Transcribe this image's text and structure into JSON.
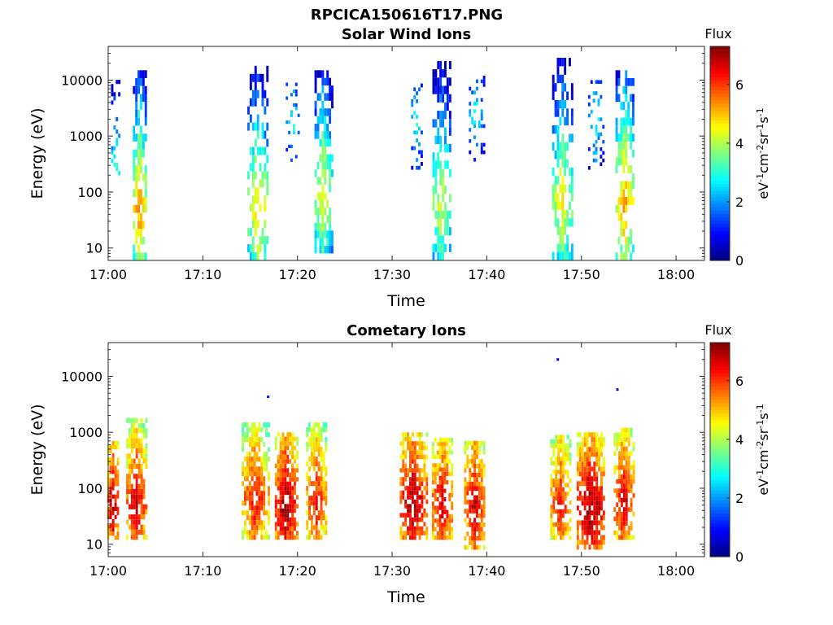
{
  "figure": {
    "title": "RPCICA150616T17.PNG",
    "flux_label": "Flux",
    "unit_base": "eV",
    "unit_exp1": "-1",
    "unit_mid1": "cm",
    "unit_exp2": "-2",
    "unit_mid2": "sr",
    "unit_exp3": "-1",
    "unit_mid3": "s",
    "unit_exp4": "-1"
  },
  "chart_data": [
    {
      "type": "heatmap",
      "title": "Solar Wind Ions",
      "xlabel": "Time",
      "ylabel": "Energy (eV)",
      "x_ticks": [
        "17:00",
        "17:10",
        "17:20",
        "17:30",
        "17:40",
        "17:50",
        "18:00"
      ],
      "x_tick_minutes": [
        0,
        10,
        20,
        30,
        40,
        50,
        60
      ],
      "xlim_minutes": [
        0,
        63
      ],
      "y_scale": "log",
      "ylim": [
        6,
        40000
      ],
      "y_ticks": [
        "10",
        "100",
        "1000",
        "10000"
      ],
      "y_tick_values": [
        10,
        100,
        1000,
        10000
      ],
      "colorbar": {
        "label": "Flux",
        "range": [
          0,
          7.3
        ],
        "ticks": [
          "0",
          "2",
          "4",
          "6"
        ],
        "tick_values": [
          0,
          2,
          4,
          6
        ],
        "colormap": "jet"
      },
      "activity_intervals_minutes": [
        [
          0,
          1.3
        ],
        [
          2.3,
          4.5
        ],
        [
          14.3,
          17.3
        ],
        [
          18.5,
          20.5
        ],
        [
          21.5,
          23.8
        ],
        [
          31.8,
          33.4
        ],
        [
          33.8,
          36.2
        ],
        [
          37.8,
          39.9
        ],
        [
          46.4,
          49.1
        ],
        [
          50.6,
          52.4
        ],
        [
          53.5,
          55.7
        ]
      ],
      "bursts": [
        {
          "t": 0.8,
          "width": 1.0,
          "emin": 200,
          "emax": 12000,
          "peak_e": 60,
          "peak_flux": 4.5,
          "density": 0.25
        },
        {
          "t": 3.3,
          "width": 1.4,
          "emin": 6,
          "emax": 15000,
          "peak_e": 40,
          "peak_flux": 5.5,
          "density": 0.75
        },
        {
          "t": 15.8,
          "width": 2.2,
          "emin": 6,
          "emax": 18000,
          "peak_e": 45,
          "peak_flux": 5.0,
          "density": 0.6
        },
        {
          "t": 19.5,
          "width": 1.5,
          "emin": 300,
          "emax": 9000,
          "peak_e": 1500,
          "peak_flux": 3.0,
          "density": 0.3
        },
        {
          "t": 22.7,
          "width": 1.8,
          "emin": 8,
          "emax": 15000,
          "peak_e": 80,
          "peak_flux": 4.8,
          "density": 0.7
        },
        {
          "t": 32.6,
          "width": 1.2,
          "emin": 250,
          "emax": 12000,
          "peak_e": 1500,
          "peak_flux": 3.0,
          "density": 0.3
        },
        {
          "t": 35.2,
          "width": 1.9,
          "emin": 6,
          "emax": 22000,
          "peak_e": 60,
          "peak_flux": 4.6,
          "density": 0.75
        },
        {
          "t": 38.9,
          "width": 1.6,
          "emin": 300,
          "emax": 12000,
          "peak_e": 2000,
          "peak_flux": 3.0,
          "density": 0.3
        },
        {
          "t": 48.0,
          "width": 2.2,
          "emin": 6,
          "emax": 25000,
          "peak_e": 60,
          "peak_flux": 4.8,
          "density": 0.7
        },
        {
          "t": 51.5,
          "width": 1.6,
          "emin": 250,
          "emax": 10000,
          "peak_e": 1500,
          "peak_flux": 3.0,
          "density": 0.3
        },
        {
          "t": 54.6,
          "width": 2.0,
          "emin": 6,
          "emax": 15000,
          "peak_e": 55,
          "peak_flux": 5.5,
          "density": 0.75
        }
      ]
    },
    {
      "type": "heatmap",
      "title": "Cometary Ions",
      "xlabel": "Time",
      "ylabel": "Energy (eV)",
      "x_ticks": [
        "17:00",
        "17:10",
        "17:20",
        "17:30",
        "17:40",
        "17:50",
        "18:00"
      ],
      "x_tick_minutes": [
        0,
        10,
        20,
        30,
        40,
        50,
        60
      ],
      "xlim_minutes": [
        0,
        63
      ],
      "y_scale": "log",
      "ylim": [
        6,
        40000
      ],
      "y_ticks": [
        "10",
        "100",
        "1000",
        "10000"
      ],
      "y_tick_values": [
        10,
        100,
        1000,
        10000
      ],
      "colorbar": {
        "label": "Flux",
        "range": [
          0,
          7.3
        ],
        "ticks": [
          "0",
          "2",
          "4",
          "6"
        ],
        "tick_values": [
          0,
          2,
          4,
          6
        ],
        "colormap": "jet"
      },
      "activity_intervals_minutes": [
        [
          0,
          4.5
        ],
        [
          14.3,
          23.8
        ],
        [
          30.5,
          39.9
        ],
        [
          46.4,
          55.7
        ]
      ],
      "bursts": [
        {
          "t": 0.5,
          "width": 1.2,
          "emin": 12,
          "emax": 700,
          "peak_e": 45,
          "peak_flux": 7.0,
          "density": 0.85
        },
        {
          "t": 3.0,
          "width": 2.2,
          "emin": 12,
          "emax": 1800,
          "peak_e": 50,
          "peak_flux": 6.8,
          "density": 0.85
        },
        {
          "t": 15.5,
          "width": 2.8,
          "emin": 12,
          "emax": 1500,
          "peak_e": 60,
          "peak_flux": 6.5,
          "density": 0.85
        },
        {
          "t": 18.8,
          "width": 2.4,
          "emin": 12,
          "emax": 1000,
          "peak_e": 45,
          "peak_flux": 7.2,
          "density": 0.9
        },
        {
          "t": 22.0,
          "width": 2.2,
          "emin": 12,
          "emax": 1500,
          "peak_e": 55,
          "peak_flux": 6.5,
          "density": 0.85
        },
        {
          "t": 32.2,
          "width": 2.8,
          "emin": 12,
          "emax": 1000,
          "peak_e": 50,
          "peak_flux": 7.2,
          "density": 0.85
        },
        {
          "t": 35.3,
          "width": 2.2,
          "emin": 12,
          "emax": 800,
          "peak_e": 45,
          "peak_flux": 6.8,
          "density": 0.85
        },
        {
          "t": 38.7,
          "width": 2.2,
          "emin": 8,
          "emax": 700,
          "peak_e": 45,
          "peak_flux": 6.8,
          "density": 0.85
        },
        {
          "t": 47.8,
          "width": 2.2,
          "emin": 12,
          "emax": 900,
          "peak_e": 50,
          "peak_flux": 6.5,
          "density": 0.85
        },
        {
          "t": 51.0,
          "width": 3.0,
          "emin": 8,
          "emax": 1000,
          "peak_e": 40,
          "peak_flux": 7.3,
          "density": 0.9
        },
        {
          "t": 54.5,
          "width": 2.2,
          "emin": 12,
          "emax": 1200,
          "peak_e": 50,
          "peak_flux": 6.8,
          "density": 0.85
        }
      ],
      "isolated_points": [
        {
          "t": 16.9,
          "e": 4300,
          "flux": 1.0
        },
        {
          "t": 47.5,
          "e": 20000,
          "flux": 0.8
        },
        {
          "t": 53.8,
          "e": 5800,
          "flux": 0.8
        }
      ]
    }
  ]
}
